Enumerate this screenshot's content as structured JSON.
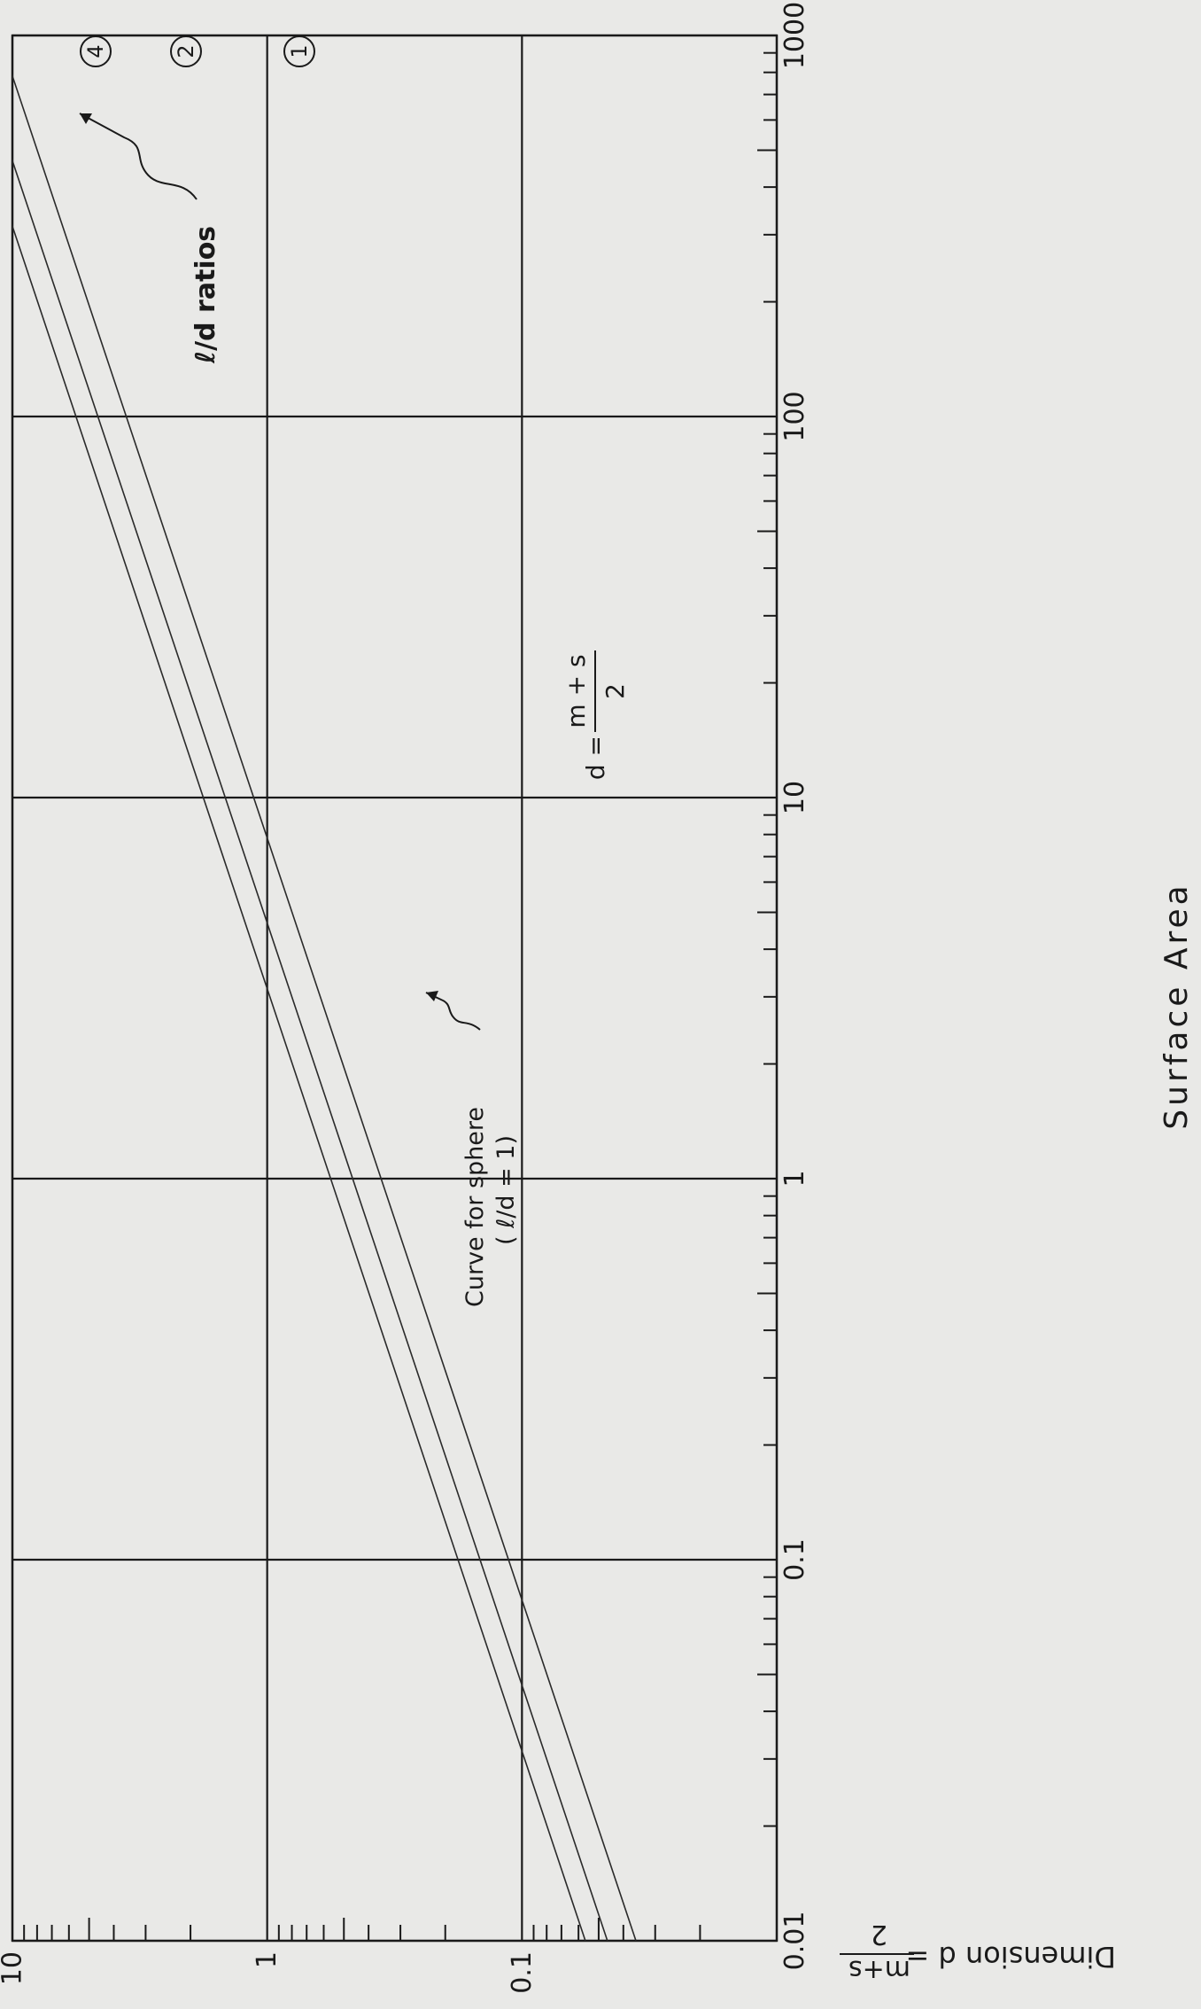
{
  "chart_data": {
    "type": "line",
    "orientation": "rotated 90° counter-clockwise",
    "x_scale": "log",
    "y_scale": "log",
    "xlabel": "Surface Area",
    "ylabel": "Dimension  d = m+s / 2",
    "xlim": [
      0.01,
      1000
    ],
    "ylim": [
      0.01,
      10
    ],
    "x_ticks": [
      "0.01",
      "0.1",
      "1",
      "10",
      "100",
      "1000"
    ],
    "y_ticks": [
      "0.1",
      "1",
      "10"
    ],
    "grid": true,
    "series": [
      {
        "name": "1",
        "x": [
          0.01,
          1000
        ],
        "y": [
          0.0564,
          17.8
        ]
      },
      {
        "name": "2",
        "x": [
          0.01,
          1000
        ],
        "y": [
          0.0462,
          14.6
        ]
      },
      {
        "name": "4",
        "x": [
          0.01,
          1000
        ],
        "y": [
          0.0357,
          11.3
        ]
      }
    ],
    "annotations": {
      "formula_lhs": "d =",
      "formula_num": "m + s",
      "formula_den": "2",
      "sphere_line1": "Curve for sphere",
      "sphere_line2": "( ℓ/d = 1)",
      "ratios": "ℓ/d ratios",
      "ylabel_lhs": "Dimension  d =",
      "ylabel_num": "m+s",
      "ylabel_den": "2"
    }
  }
}
